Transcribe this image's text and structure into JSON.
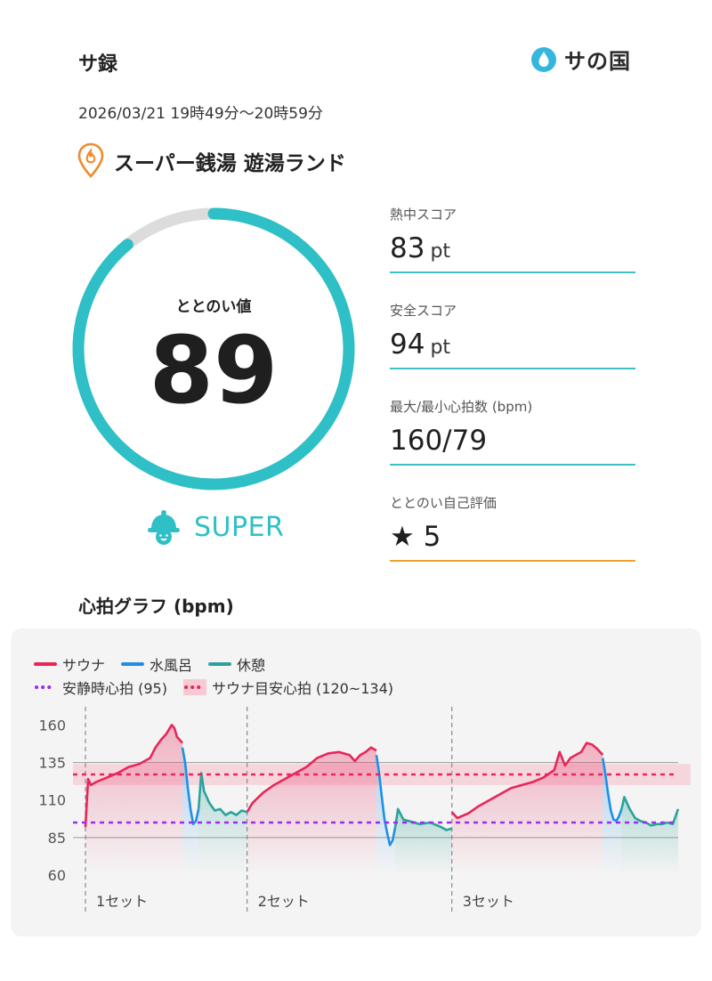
{
  "app": {
    "title": "サ録",
    "logo_text": "サの国"
  },
  "session": {
    "datetime": "2026/03/21 19時49分〜20時59分",
    "facility": "スーパー銭湯 遊湯ランド"
  },
  "gauge": {
    "label": "ととのい値",
    "value": "89",
    "fraction": 0.89,
    "rank": "SUPER"
  },
  "stats": [
    {
      "label": "熱中スコア",
      "value": "83",
      "unit": "pt"
    },
    {
      "label": "安全スコア",
      "value": "94",
      "unit": "pt"
    },
    {
      "label": "最大/最小心拍数 (bpm)",
      "value": "160/79",
      "unit": ""
    },
    {
      "label": "ととのい自己評価",
      "value": "★ 5",
      "unit": ""
    }
  ],
  "graph": {
    "title": "心拍グラフ (bpm)"
  },
  "colors": {
    "sauna": "#e8265a",
    "water": "#1f8fe6",
    "rest": "#2ba39b",
    "teal": "#2ec0c6",
    "orange": "#f0a22e",
    "resting": "#9b2cf0"
  },
  "chart_data": {
    "type": "line",
    "title": "心拍グラフ (bpm)",
    "xlabel": "",
    "ylabel": "",
    "ylim": [
      60,
      165
    ],
    "yticks": [
      60,
      85,
      110,
      135,
      160
    ],
    "xlim": [
      0,
      110
    ],
    "legend": [
      {
        "name": "サウナ",
        "style": "line"
      },
      {
        "name": "水風呂",
        "style": "line"
      },
      {
        "name": "休憩",
        "style": "line"
      },
      {
        "name": "安静時心拍 (95)",
        "style": "dotted"
      },
      {
        "name": "サウナ目安心拍 (120~134)",
        "style": "band"
      }
    ],
    "legend_position": "top-left",
    "grid": false,
    "resting_hr": 95,
    "target_band": [
      120,
      134
    ],
    "sets": [
      {
        "label": "1セット",
        "x": 0
      },
      {
        "label": "2セット",
        "x": 30
      },
      {
        "label": "3セット",
        "x": 68
      }
    ],
    "series": [
      {
        "name": "サウナ",
        "segments": [
          {
            "x": [
              0,
              0.5,
              1,
              2,
              4,
              6,
              8,
              10,
              12,
              13,
              14,
              15,
              16,
              16.5,
              17,
              18
            ],
            "y": [
              92,
              124,
              120,
              122,
              125,
              128,
              132,
              134,
              138,
              145,
              150,
              154,
              160,
              158,
              152,
              148
            ]
          },
          {
            "x": [
              30,
              31,
              33,
              35,
              37,
              39,
              41,
              43,
              45,
              47,
              49,
              50,
              51,
              52,
              53,
              54
            ],
            "y": [
              102,
              108,
              115,
              120,
              124,
              128,
              132,
              138,
              141,
              142,
              140,
              136,
              140,
              142,
              145,
              143
            ]
          },
          {
            "x": [
              68,
              69,
              71,
              73,
              75,
              77,
              79,
              81,
              83,
              85,
              87,
              88,
              89,
              90,
              91,
              92,
              93,
              94,
              95,
              96
            ],
            "y": [
              102,
              98,
              101,
              106,
              110,
              114,
              118,
              120,
              122,
              125,
              130,
              142,
              133,
              138,
              140,
              142,
              148,
              147,
              144,
              140
            ]
          }
        ]
      },
      {
        "name": "水風呂",
        "segments": [
          {
            "x": [
              18,
              18.5,
              19,
              19.5,
              20,
              20.5,
              21
            ],
            "y": [
              145,
              135,
              118,
              104,
              94,
              96,
              104
            ]
          },
          {
            "x": [
              54,
              54.5,
              55,
              55.5,
              56,
              56.5,
              57,
              57.5
            ],
            "y": [
              140,
              128,
              112,
              97,
              88,
              80,
              83,
              92
            ]
          },
          {
            "x": [
              96,
              96.5,
              97,
              97.5,
              98,
              98.5,
              99,
              99.5
            ],
            "y": [
              138,
              127,
              114,
              103,
              97,
              96,
              99,
              104
            ]
          }
        ]
      },
      {
        "name": "休憩",
        "segments": [
          {
            "x": [
              21,
              21.5,
              22,
              23,
              24,
              25,
              26,
              27,
              28,
              29,
              30
            ],
            "y": [
              104,
              128,
              116,
              108,
              103,
              104,
              100,
              102,
              100,
              103,
              102
            ]
          },
          {
            "x": [
              57.5,
              58,
              59,
              60,
              62,
              64,
              66,
              67,
              68
            ],
            "y": [
              92,
              104,
              97,
              96,
              94,
              95,
              92,
              90,
              91
            ]
          },
          {
            "x": [
              99.5,
              100,
              101,
              102,
              103,
              104,
              105,
              106,
              107,
              108,
              109,
              110
            ],
            "y": [
              104,
              112,
              104,
              98,
              96,
              95,
              93,
              94,
              94,
              95,
              94,
              104
            ]
          }
        ]
      }
    ]
  }
}
